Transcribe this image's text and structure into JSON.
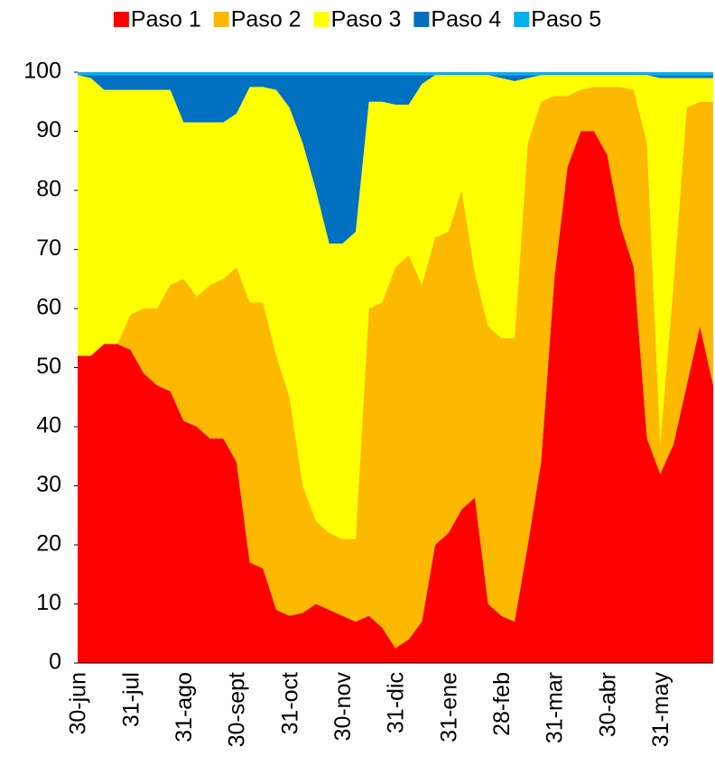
{
  "chart_data": {
    "type": "stacked-area",
    "categories": [
      "30-jun",
      null,
      null,
      null,
      "31-jul",
      null,
      null,
      null,
      "31-ago",
      null,
      null,
      null,
      "30-sept",
      null,
      null,
      null,
      "31-oct",
      null,
      null,
      null,
      "30-nov",
      null,
      null,
      null,
      "31-dic",
      null,
      null,
      null,
      "31-ene",
      null,
      null,
      null,
      "28-feb",
      null,
      null,
      null,
      "31-mar",
      null,
      null,
      null,
      "30-abr",
      null,
      null,
      null,
      "31-may",
      null,
      null,
      null,
      null
    ],
    "series": [
      {
        "name": "Paso 1",
        "color": "#ff0000",
        "values": [
          52,
          52,
          54,
          54,
          53,
          49,
          47,
          46,
          41,
          40,
          38,
          38,
          34,
          17,
          16,
          9,
          8,
          8.5,
          10,
          9,
          8,
          7,
          8,
          6,
          2.5,
          4,
          7,
          20,
          22,
          26,
          28,
          10,
          8,
          7,
          20,
          34,
          65,
          84,
          90,
          90,
          86,
          74,
          67,
          38,
          32,
          37,
          47,
          57,
          47
        ]
      },
      {
        "name": "Paso 2",
        "color": "#fdb900",
        "values": [
          0,
          0,
          0,
          0,
          6,
          11,
          13,
          18,
          24,
          22,
          26,
          27,
          33,
          44,
          45,
          43,
          37,
          21.5,
          14,
          13,
          13,
          14,
          52,
          55,
          64.5,
          65,
          57,
          52,
          51,
          54,
          38,
          47,
          47,
          48,
          68,
          61,
          31,
          12,
          7,
          7.5,
          11.5,
          23.5,
          30,
          50,
          5,
          27,
          47,
          38,
          48
        ]
      },
      {
        "name": "Paso 3",
        "color": "#ffff00",
        "values": [
          47.5,
          47,
          43,
          43,
          38,
          37,
          37,
          33,
          26.5,
          29.5,
          27.5,
          26.5,
          26,
          36.5,
          36.5,
          45,
          49,
          58,
          56,
          49,
          50,
          52,
          35,
          34,
          27.5,
          25.5,
          34,
          27.5,
          26.5,
          19.5,
          33.5,
          42.5,
          44,
          43.5,
          11,
          4.5,
          3.5,
          3.5,
          2.5,
          2,
          2,
          2,
          2.5,
          11.5,
          62,
          35,
          5,
          4,
          4
        ]
      },
      {
        "name": "Paso 4",
        "color": "#0070c0",
        "values": [
          0,
          0.5,
          2.5,
          2.5,
          2.5,
          2.5,
          2.5,
          2.5,
          8,
          8,
          8,
          8,
          6.5,
          2,
          2,
          2.5,
          5.5,
          11.5,
          19.5,
          28.5,
          28.5,
          26.5,
          4.5,
          4.5,
          5,
          5,
          1.5,
          0,
          0,
          0,
          0,
          0,
          0.5,
          1,
          0.5,
          0,
          0,
          0,
          0,
          0,
          0,
          0,
          0,
          0,
          0.5,
          0.5,
          0.5,
          0.5,
          0.5
        ]
      },
      {
        "name": "Paso 5",
        "color": "#00b0f0",
        "values": [
          0.5,
          0.5,
          0.5,
          0.5,
          0.5,
          0.5,
          0.5,
          0.5,
          0.5,
          0.5,
          0.5,
          0.5,
          0.5,
          0.5,
          0.5,
          0.5,
          0.5,
          0.5,
          0.5,
          0.5,
          0.5,
          0.5,
          0.5,
          0.5,
          0.5,
          0.5,
          0.5,
          0.5,
          0.5,
          0.5,
          0.5,
          0.5,
          0.5,
          0.5,
          0.5,
          0.5,
          0.5,
          0.5,
          0.5,
          0.5,
          0.5,
          0.5,
          0.5,
          0.5,
          0.5,
          0.5,
          0.5,
          0.5,
          0.5
        ]
      }
    ],
    "ylim": [
      0,
      100
    ],
    "yticks": [
      0,
      10,
      20,
      30,
      40,
      50,
      60,
      70,
      80,
      90,
      100
    ],
    "legend": "top"
  }
}
